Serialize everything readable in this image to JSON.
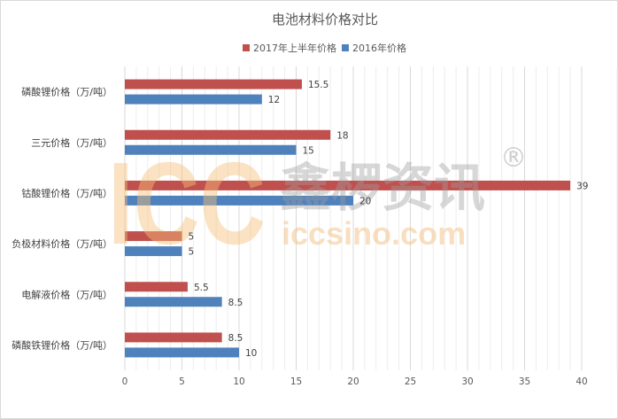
{
  "chart_data": {
    "type": "bar",
    "orientation": "horizontal",
    "title": "电池材料价格对比",
    "categories": [
      "磷酸锂价格（万/吨）",
      "三元价格（万/吨）",
      "钴酸锂价格（万/吨）",
      "负极材料价格（万/吨）",
      "电解液价格（万/吨）",
      "磷酸铁锂价格（万/吨）"
    ],
    "series": [
      {
        "name": "2017年上半年价格",
        "color": "#c0504d",
        "values": [
          15.5,
          18,
          39,
          5,
          5.5,
          8.5
        ]
      },
      {
        "name": "2016年价格",
        "color": "#4f81bd",
        "values": [
          12,
          15,
          20,
          5,
          8.5,
          10
        ]
      }
    ],
    "xlim": [
      0,
      40
    ],
    "xticks": [
      0,
      5,
      10,
      15,
      20,
      25,
      30,
      35,
      40
    ],
    "grid": true,
    "legend_position": "top",
    "watermark": {
      "logo_text": "ICC",
      "brand_text": "鑫椤资讯",
      "url_text": "iccsino.com",
      "mark": "®"
    }
  }
}
